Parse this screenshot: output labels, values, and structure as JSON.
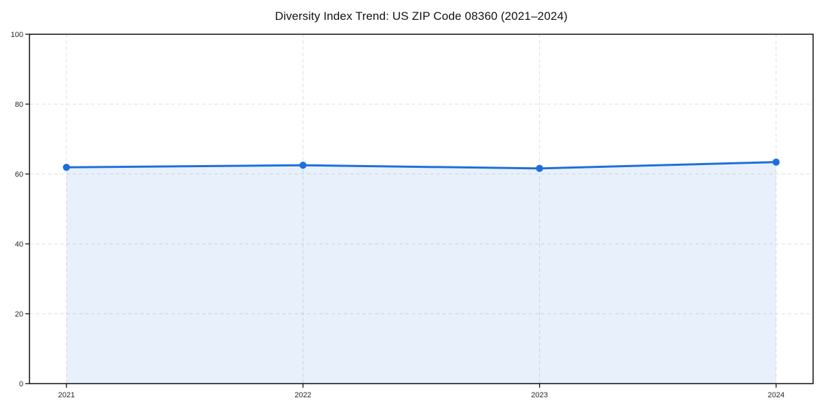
{
  "page": {
    "background_color": "#ffffff"
  },
  "chart_data": {
    "type": "area",
    "title": "Diversity Index Trend: US ZIP Code 08360 (2021–2024)",
    "x": [
      "2021",
      "2022",
      "2023",
      "2024"
    ],
    "series": [
      {
        "name": "Diversity Index",
        "values": [
          61.9,
          62.5,
          61.6,
          63.4
        ]
      }
    ],
    "xlabel": "",
    "ylabel": "",
    "ylim": [
      0,
      100
    ],
    "yticks": [
      0,
      20,
      40,
      60,
      80,
      100
    ],
    "grid": true,
    "grid_style": "dashed",
    "legend_position": "none",
    "line_color": "#1b6ede",
    "marker": "circle",
    "marker_color": "#1b6ede",
    "fill_color": "rgba(27,110,222,0.10)",
    "grid_color": "#dcdcdc",
    "axis_color": "#1a1a1a",
    "tick_label_color": "#262626",
    "title_color": "#111111"
  }
}
